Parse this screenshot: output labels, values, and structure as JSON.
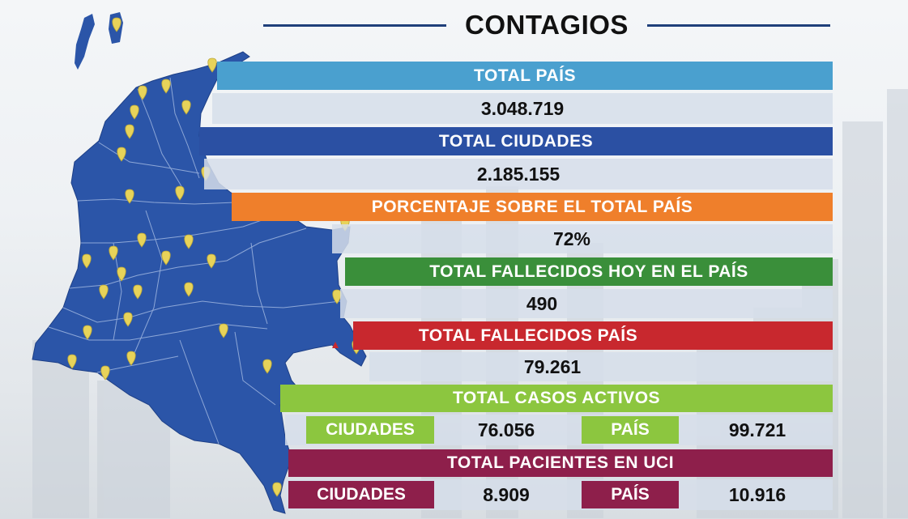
{
  "title": "CONTAGIOS",
  "colors": {
    "light_blue": "#4aa0cf",
    "dark_blue": "#2b50a3",
    "orange": "#ef7f2b",
    "green": "#3a8f3a",
    "red": "#c8282e",
    "lime": "#8cc63f",
    "maroon": "#8e1f4b",
    "map_blue": "#2b55a8",
    "pin_yellow": "#e7d35a"
  },
  "rows": [
    {
      "label": "TOTAL PAÍS",
      "value": "3.048.719"
    },
    {
      "label": "TOTAL CIUDADES",
      "value": "2.185.155"
    },
    {
      "label": "PORCENTAJE SOBRE EL TOTAL PAÍS",
      "value": "72%"
    },
    {
      "label": "TOTAL FALLECIDOS HOY EN EL PAÍS",
      "value": "490"
    },
    {
      "label": "TOTAL FALLECIDOS PAÍS",
      "value": "79.261"
    }
  ],
  "activos": {
    "label": "TOTAL CASOS ACTIVOS",
    "ciudades_label": "CIUDADES",
    "ciudades_value": "76.056",
    "pais_label": "PAÍS",
    "pais_value": "99.721"
  },
  "uci": {
    "label": "TOTAL PACIENTES EN UCI",
    "ciudades_label": "CIUDADES",
    "ciudades_value": "8.909",
    "pais_label": "PAÍS",
    "pais_value": "10.916"
  },
  "map": {
    "pin_icon": "location-pin-icon",
    "shape": "colombia-map"
  }
}
